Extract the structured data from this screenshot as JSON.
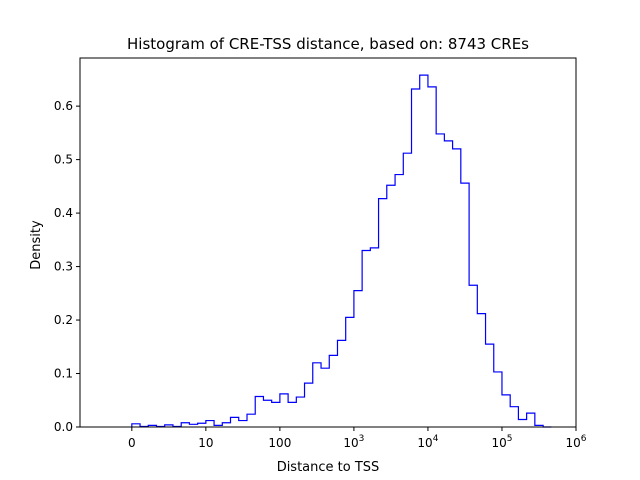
{
  "chart_data": {
    "type": "step-histogram",
    "title": "Histogram of CRE-TSS distance, based on: 8743 CREs",
    "xlabel": "Distance to TSS",
    "ylabel": "Density",
    "xscale": "symlog",
    "xlim": [
      -0.7,
      6.0
    ],
    "ylim": [
      0,
      0.69
    ],
    "xticks": [
      {
        "label": "0",
        "sup": "",
        "value": 0
      },
      {
        "label": "10",
        "sup": "",
        "value": 1
      },
      {
        "label": "100",
        "sup": "",
        "value": 2
      },
      {
        "label": "10",
        "sup": "3",
        "value": 3
      },
      {
        "label": "10",
        "sup": "4",
        "value": 4
      },
      {
        "label": "10",
        "sup": "5",
        "value": 5
      },
      {
        "label": "10",
        "sup": "6",
        "value": 6
      }
    ],
    "yticks": [
      {
        "label": "0.0",
        "value": 0.0
      },
      {
        "label": "0.1",
        "value": 0.1
      },
      {
        "label": "0.2",
        "value": 0.2
      },
      {
        "label": "0.3",
        "value": 0.3
      },
      {
        "label": "0.4",
        "value": 0.4
      },
      {
        "label": "0.5",
        "value": 0.5
      },
      {
        "label": "0.6",
        "value": 0.6
      }
    ],
    "series": [
      {
        "color": "#0000ff",
        "bin_edges": [
          0.0,
          0.111,
          0.222,
          0.333,
          0.444,
          0.556,
          0.667,
          0.778,
          0.889,
          1.0,
          1.111,
          1.222,
          1.333,
          1.444,
          1.556,
          1.667,
          1.778,
          1.889,
          2.0,
          2.111,
          2.222,
          2.333,
          2.444,
          2.556,
          2.667,
          2.778,
          2.889,
          3.0,
          3.111,
          3.222,
          3.333,
          3.444,
          3.556,
          3.667,
          3.778,
          3.889,
          4.0,
          4.111,
          4.222,
          4.333,
          4.444,
          4.556,
          4.667,
          4.778,
          4.889,
          5.0,
          5.111,
          5.222,
          5.333,
          5.444,
          5.556,
          5.667
        ],
        "densities": [
          0.006,
          0.001,
          0.003,
          0.001,
          0.004,
          0.001,
          0.008,
          0.005,
          0.007,
          0.012,
          0.003,
          0.008,
          0.018,
          0.012,
          0.024,
          0.057,
          0.05,
          0.046,
          0.062,
          0.046,
          0.056,
          0.082,
          0.12,
          0.11,
          0.134,
          0.162,
          0.205,
          0.255,
          0.33,
          0.335,
          0.427,
          0.452,
          0.472,
          0.512,
          0.632,
          0.658,
          0.636,
          0.548,
          0.535,
          0.52,
          0.456,
          0.265,
          0.212,
          0.155,
          0.103,
          0.06,
          0.038,
          0.014,
          0.026,
          0.003,
          0.0
        ]
      }
    ]
  }
}
